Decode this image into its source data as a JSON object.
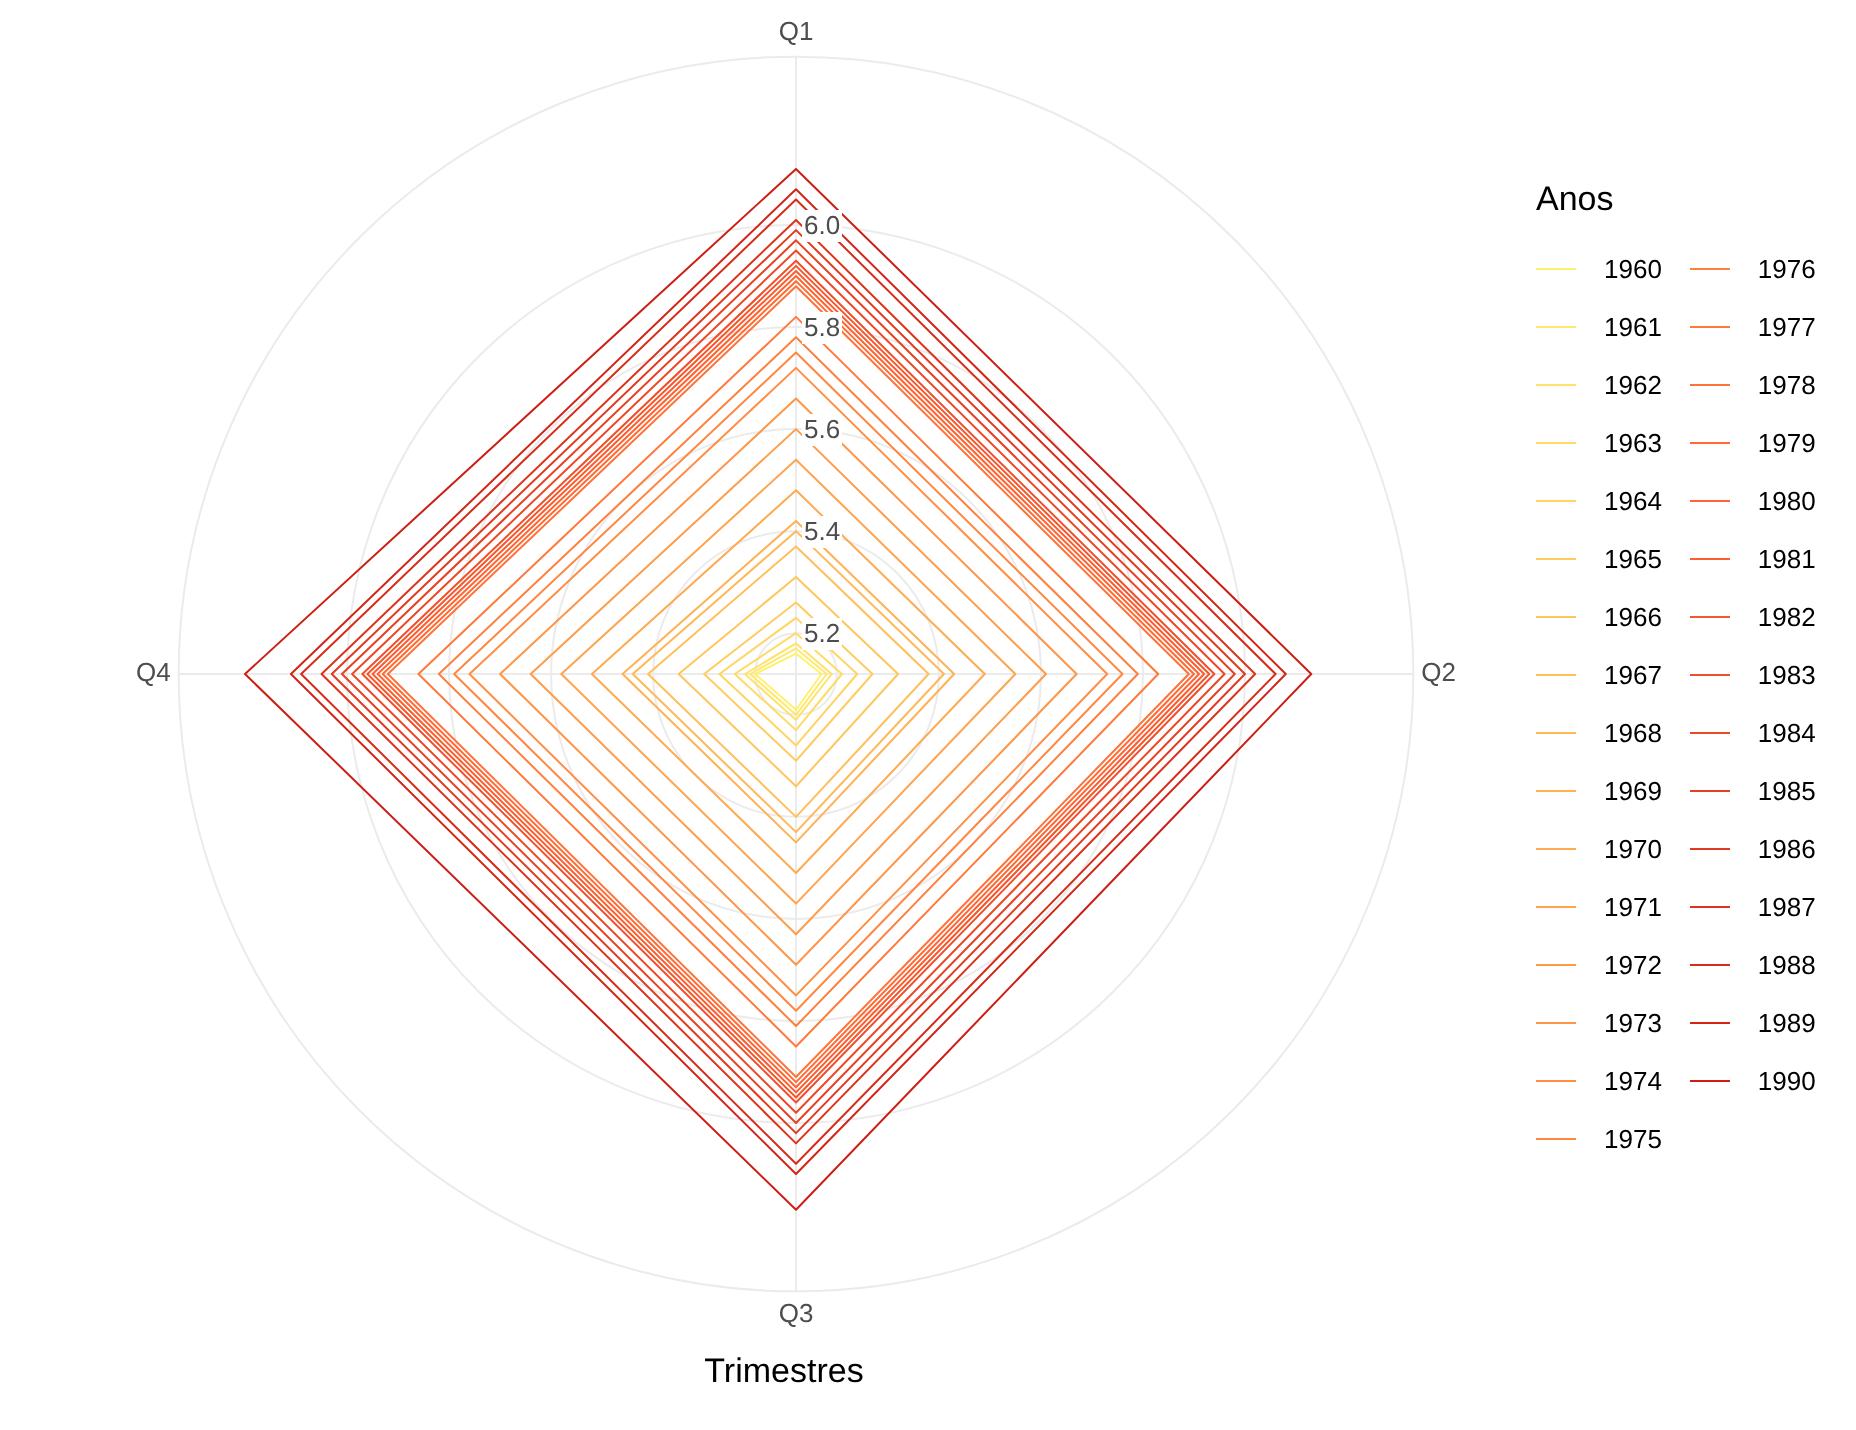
{
  "chart_data": {
    "type": "radar",
    "xlabel": "Trimestres",
    "legend_title": "Anos",
    "categories": [
      "Q1",
      "Q2",
      "Q3",
      "Q4"
    ],
    "ylim": [
      5.12,
      6.33
    ],
    "yticks": [
      5.2,
      5.4,
      5.6,
      5.8,
      {
        "value": 6,
        "label": "6.0"
      }
    ],
    "grid": true,
    "legend": "right",
    "marker": "none",
    "series": [
      {
        "name": "1960",
        "color": "#fff06e",
        "values": [
          5.16,
          5.17,
          5.19,
          5.2
        ]
      },
      {
        "name": "1961",
        "color": "#ffe96b",
        "values": [
          5.17,
          5.18,
          5.2,
          5.21
        ]
      },
      {
        "name": "1962",
        "color": "#ffe268",
        "values": [
          5.18,
          5.19,
          5.21,
          5.22
        ]
      },
      {
        "name": "1963",
        "color": "#ffdb65",
        "values": [
          5.2,
          5.21,
          5.23,
          5.24
        ]
      },
      {
        "name": "1964",
        "color": "#ffd462",
        "values": [
          5.23,
          5.24,
          5.26,
          5.27
        ]
      },
      {
        "name": "1965",
        "color": "#ffcd5f",
        "values": [
          5.26,
          5.27,
          5.29,
          5.3
        ]
      },
      {
        "name": "1966",
        "color": "#ffc65c",
        "values": [
          5.31,
          5.32,
          5.34,
          5.35
        ]
      },
      {
        "name": "1967",
        "color": "#ffbf59",
        "values": [
          5.37,
          5.38,
          5.4,
          5.41
        ]
      },
      {
        "name": "1968",
        "color": "#ffb856",
        "values": [
          5.4,
          5.41,
          5.43,
          5.44
        ]
      },
      {
        "name": "1969",
        "color": "#ffb153",
        "values": [
          5.42,
          5.43,
          5.45,
          5.46
        ]
      },
      {
        "name": "1970",
        "color": "#ffaa50",
        "values": [
          5.48,
          5.49,
          5.51,
          5.52
        ]
      },
      {
        "name": "1971",
        "color": "#ffa34d",
        "values": [
          5.54,
          5.55,
          5.57,
          5.58
        ]
      },
      {
        "name": "1972",
        "color": "#ff9c4a",
        "values": [
          5.6,
          5.61,
          5.63,
          5.64
        ]
      },
      {
        "name": "1973",
        "color": "#ff9547",
        "values": [
          5.66,
          5.67,
          5.69,
          5.7
        ]
      },
      {
        "name": "1974",
        "color": "#ff8e44",
        "values": [
          5.72,
          5.73,
          5.75,
          5.76
        ]
      },
      {
        "name": "1975",
        "color": "#ff8741",
        "values": [
          5.75,
          5.76,
          5.78,
          5.79
        ]
      },
      {
        "name": "1976",
        "color": "#ff803e",
        "values": [
          5.78,
          5.79,
          5.81,
          5.82
        ]
      },
      {
        "name": "1977",
        "color": "#ff793b",
        "values": [
          5.82,
          5.83,
          5.85,
          5.86
        ]
      },
      {
        "name": "1978",
        "color": "#ff7238",
        "values": [
          5.88,
          5.89,
          5.91,
          5.92
        ]
      },
      {
        "name": "1979",
        "color": "#ff6b35",
        "values": [
          5.89,
          5.9,
          5.92,
          5.93
        ]
      },
      {
        "name": "1980",
        "color": "#ff6432",
        "values": [
          5.9,
          5.91,
          5.93,
          5.94
        ]
      },
      {
        "name": "1981",
        "color": "#fa5d2f",
        "values": [
          5.91,
          5.92,
          5.94,
          5.95
        ]
      },
      {
        "name": "1982",
        "color": "#f5562c",
        "values": [
          5.92,
          5.93,
          5.95,
          5.96
        ]
      },
      {
        "name": "1983",
        "color": "#f04f29",
        "values": [
          5.93,
          5.94,
          5.96,
          5.97
        ]
      },
      {
        "name": "1984",
        "color": "#eb4826",
        "values": [
          5.95,
          5.96,
          5.98,
          5.99
        ]
      },
      {
        "name": "1985",
        "color": "#e64123",
        "values": [
          5.97,
          5.98,
          6.0,
          6.01
        ]
      },
      {
        "name": "1986",
        "color": "#e13a20",
        "values": [
          5.99,
          6.0,
          6.02,
          6.03
        ]
      },
      {
        "name": "1987",
        "color": "#dc331d",
        "values": [
          6.01,
          6.02,
          6.04,
          6.05
        ]
      },
      {
        "name": "1988",
        "color": "#d72c1a",
        "values": [
          6.05,
          6.06,
          6.08,
          6.09
        ]
      },
      {
        "name": "1989",
        "color": "#d22517",
        "values": [
          6.07,
          6.08,
          6.1,
          6.11
        ]
      },
      {
        "name": "1990",
        "color": "#cd1e14",
        "values": [
          6.11,
          6.13,
          6.17,
          6.2
        ]
      }
    ]
  }
}
